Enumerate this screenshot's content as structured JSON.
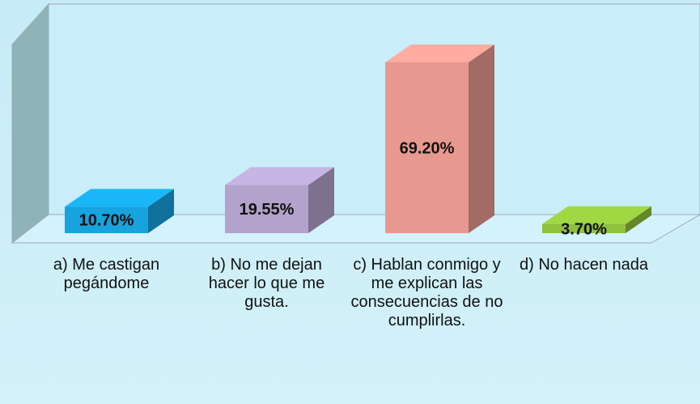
{
  "chart_data": {
    "type": "bar3d",
    "categories": [
      "a) Me castigan pegándome",
      "b) No me dejan hacer lo que me gusta.",
      "c) Hablan conmigo y me explican las consecuencias de no cumplirlas.",
      "d) No hacen nada"
    ],
    "values": [
      10.7,
      19.55,
      69.2,
      3.7
    ],
    "value_labels": [
      "10.70%",
      "19.55%",
      "69.20%",
      "3.70%"
    ],
    "colors": [
      "#17a3dd",
      "#b2a2cc",
      "#e8998f",
      "#8fc13c"
    ]
  }
}
